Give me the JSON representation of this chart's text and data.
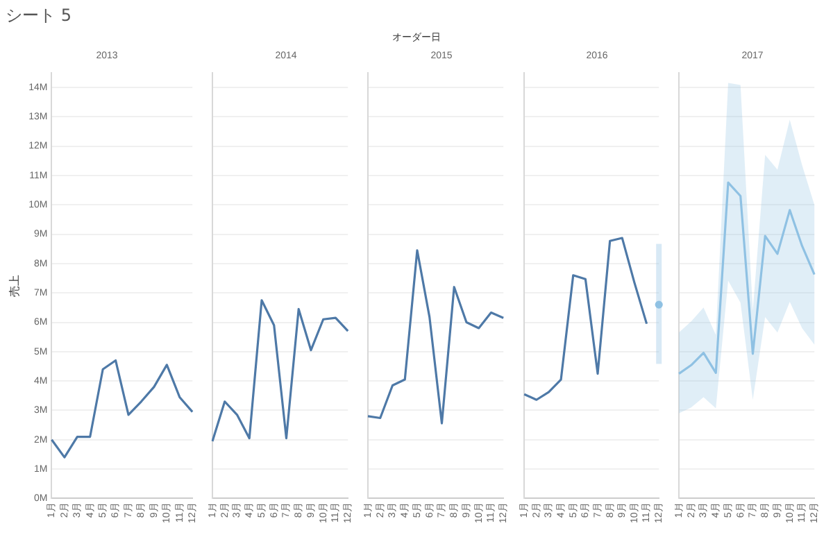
{
  "chart_data": [
    {
      "type": "other",
      "title": "シート 5",
      "annotations": [
        "オーダー日"
      ]
    },
    {
      "type": "line",
      "title": "2013",
      "ylabel": "売上",
      "categories": [
        "1月",
        "2月",
        "3月",
        "4月",
        "5月",
        "6月",
        "7月",
        "8月",
        "9月",
        "10月",
        "11月",
        "12月"
      ],
      "series": [
        {
          "color": "#4e79a7",
          "values": [
            2.0,
            1.4,
            2.1,
            2.1,
            4.4,
            4.7,
            2.85,
            3.3,
            3.8,
            4.55,
            3.45,
            2.95
          ]
        }
      ],
      "ylim": [
        0,
        14.5
      ],
      "yticks": [
        {
          "value": 0,
          "label": "0M"
        },
        {
          "value": 1,
          "label": "1M"
        },
        {
          "value": 2,
          "label": "2M"
        },
        {
          "value": 3,
          "label": "3M"
        },
        {
          "value": 4,
          "label": "4M"
        },
        {
          "value": 5,
          "label": "5M"
        },
        {
          "value": 6,
          "label": "6M"
        },
        {
          "value": 7,
          "label": "7M"
        },
        {
          "value": 8,
          "label": "8M"
        },
        {
          "value": 9,
          "label": "9M"
        },
        {
          "value": 10,
          "label": "10M"
        },
        {
          "value": 11,
          "label": "11M"
        },
        {
          "value": 12,
          "label": "12M"
        },
        {
          "value": 13,
          "label": "13M"
        },
        {
          "value": 14,
          "label": "14M"
        }
      ],
      "grid": "y",
      "marker": "none",
      "line_style": "solid"
    },
    {
      "type": "line",
      "title": "2014",
      "categories": [
        "1月",
        "2月",
        "3月",
        "4月",
        "5月",
        "6月",
        "7月",
        "8月",
        "9月",
        "10月",
        "11月",
        "12月"
      ],
      "series": [
        {
          "color": "#4e79a7",
          "values": [
            1.95,
            3.3,
            2.85,
            2.05,
            6.75,
            5.9,
            2.05,
            6.45,
            5.05,
            6.1,
            6.15,
            5.7
          ]
        }
      ],
      "ylim": [
        0,
        14.5
      ],
      "tick_labels": "x",
      "grid": "y",
      "marker": "none",
      "line_style": "solid"
    },
    {
      "type": "line",
      "title": "2015",
      "categories": [
        "1月",
        "2月",
        "3月",
        "4月",
        "5月",
        "6月",
        "7月",
        "8月",
        "9月",
        "10月",
        "11月",
        "12月"
      ],
      "series": [
        {
          "color": "#4e79a7",
          "values": [
            2.8,
            2.74,
            3.85,
            4.05,
            8.45,
            6.18,
            2.56,
            7.2,
            6.0,
            5.8,
            6.33,
            6.15
          ]
        }
      ],
      "ylim": [
        0,
        14.5
      ],
      "tick_labels": "x",
      "grid": "y",
      "marker": "none",
      "line_style": "solid"
    },
    {
      "type": "line",
      "title": "2016",
      "categories": [
        "1月",
        "2月",
        "3月",
        "4月",
        "5月",
        "6月",
        "7月",
        "8月",
        "9月",
        "10月",
        "11月",
        "12月"
      ],
      "series": [
        {
          "color": "#4e79a7",
          "values": [
            3.55,
            3.36,
            3.62,
            4.05,
            7.6,
            7.47,
            4.25,
            8.77,
            8.87,
            7.35,
            5.95,
            null
          ]
        },
        {
          "color": "#8fc1e3",
          "marker": "circle",
          "values": [
            null,
            null,
            null,
            null,
            null,
            null,
            null,
            null,
            null,
            null,
            null,
            6.6
          ],
          "errors": [
            null,
            null,
            null,
            null,
            null,
            null,
            null,
            null,
            null,
            null,
            null,
            [
              4.58,
              8.67
            ]
          ]
        }
      ],
      "ylim": [
        0,
        14.5
      ],
      "tick_labels": "x",
      "grid": "y",
      "marker": "none",
      "line_style": "solid"
    },
    {
      "type": "line",
      "title": "2017",
      "categories": [
        "1月",
        "2月",
        "3月",
        "4月",
        "5月",
        "6月",
        "7月",
        "8月",
        "9月",
        "10月",
        "11月",
        "12月"
      ],
      "series": [
        {
          "color": "#8fc1e3",
          "values": [
            4.25,
            4.54,
            4.96,
            4.28,
            10.76,
            10.3,
            4.93,
            8.94,
            8.33,
            9.82,
            8.6,
            7.63
          ],
          "lower": [
            2.9,
            3.1,
            3.45,
            3.07,
            7.42,
            6.67,
            3.36,
            6.18,
            5.65,
            6.7,
            5.8,
            5.24
          ],
          "upper": [
            5.65,
            6.03,
            6.5,
            5.57,
            14.15,
            14.08,
            6.4,
            11.7,
            11.2,
            12.9,
            11.35,
            10.0
          ]
        }
      ],
      "ylim": [
        0,
        14.5
      ],
      "tick_labels": "x",
      "grid": "y",
      "marker": "none",
      "line_style": "solid"
    }
  ]
}
